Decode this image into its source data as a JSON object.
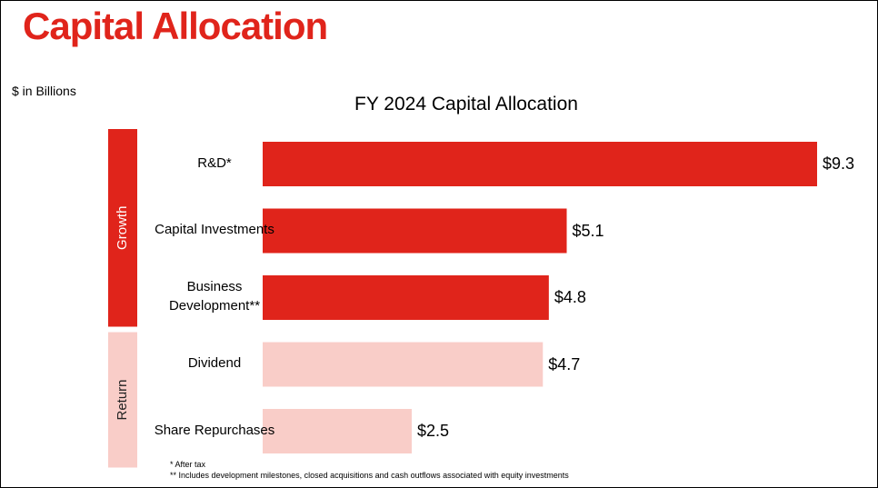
{
  "header": {
    "title": "Capital Allocation",
    "units_note": "$ in Billions"
  },
  "chart_data": {
    "type": "bar",
    "orientation": "horizontal",
    "title": "FY 2024 Capital Allocation",
    "categories": [
      "R&D*",
      "Capital Investments",
      "Business Development**",
      "Dividend",
      "Share Repurchases"
    ],
    "values": [
      9.3,
      5.1,
      4.8,
      4.7,
      2.5
    ],
    "value_labels": [
      "$9.3",
      "$5.1",
      "$4.8",
      "$4.7",
      "$2.5"
    ],
    "colors": [
      "#e0241b",
      "#e0241b",
      "#e0241b",
      "#f9cdc8",
      "#f9cdc8"
    ],
    "groups": [
      {
        "name": "Growth",
        "size": 3,
        "color": "#e0241b",
        "text_color": "#ffffff"
      },
      {
        "name": "Return",
        "size": 2,
        "color": "#f9cdc8",
        "text_color": "#222222"
      }
    ]
  },
  "footnotes": [
    "* After tax",
    "** Includes development milestones, closed acquisitions and cash outflows associated with equity investments"
  ]
}
